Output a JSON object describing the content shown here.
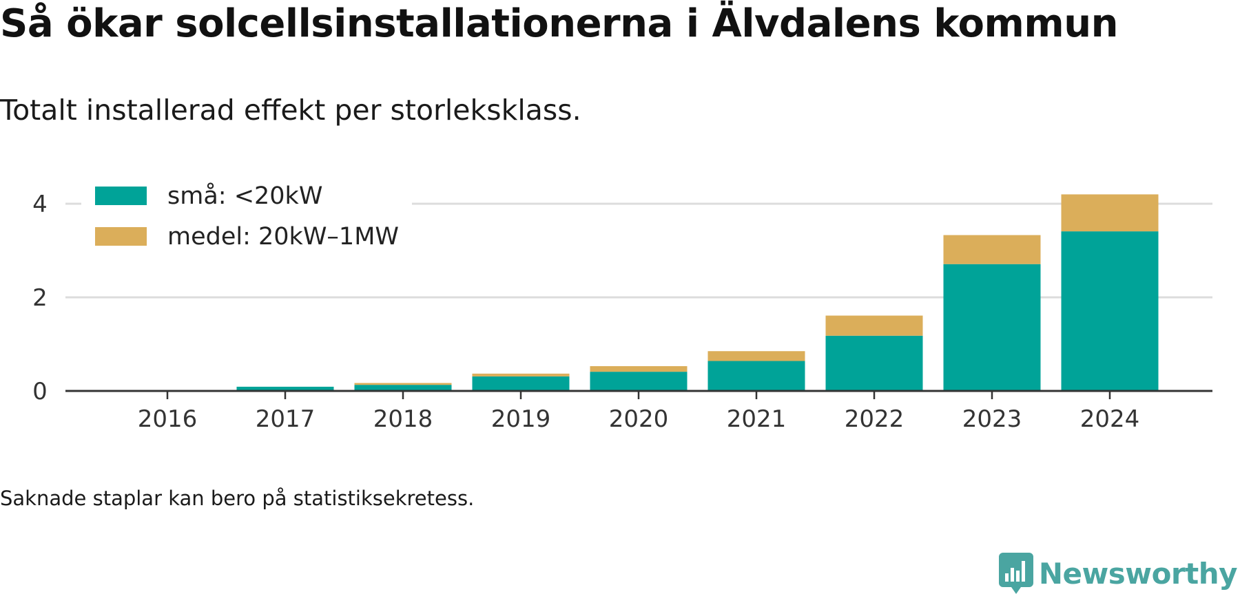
{
  "title": "Så ökar solcellsinstallationerna i Älvdalens kommun",
  "subtitle": "Totalt installerad effekt per storleksklass.",
  "note": "Saknade staplar kan bero på statistiksekretess.",
  "brand": {
    "name": "Newsworthy",
    "icon": "newsworthy-logo-icon",
    "color": "#4aa5a1"
  },
  "chart_data": {
    "type": "bar",
    "stacked": true,
    "title": "",
    "xlabel": "",
    "ylabel": "",
    "categories": [
      "2016",
      "2017",
      "2018",
      "2019",
      "2020",
      "2021",
      "2022",
      "2023",
      "2024"
    ],
    "series": [
      {
        "name": "små: <20kW",
        "color": "#00a398",
        "values": [
          0,
          0.09,
          0.13,
          0.31,
          0.41,
          0.64,
          1.18,
          2.71,
          3.41
        ]
      },
      {
        "name": "medel: 20kW–1MW",
        "color": "#dbae5a",
        "values": [
          0,
          0.0,
          0.04,
          0.06,
          0.12,
          0.21,
          0.43,
          0.62,
          0.79
        ]
      }
    ],
    "ylim": [
      0,
      4.3
    ],
    "yticks": [
      0,
      2,
      4
    ],
    "grid": true,
    "legend": "top-left"
  }
}
